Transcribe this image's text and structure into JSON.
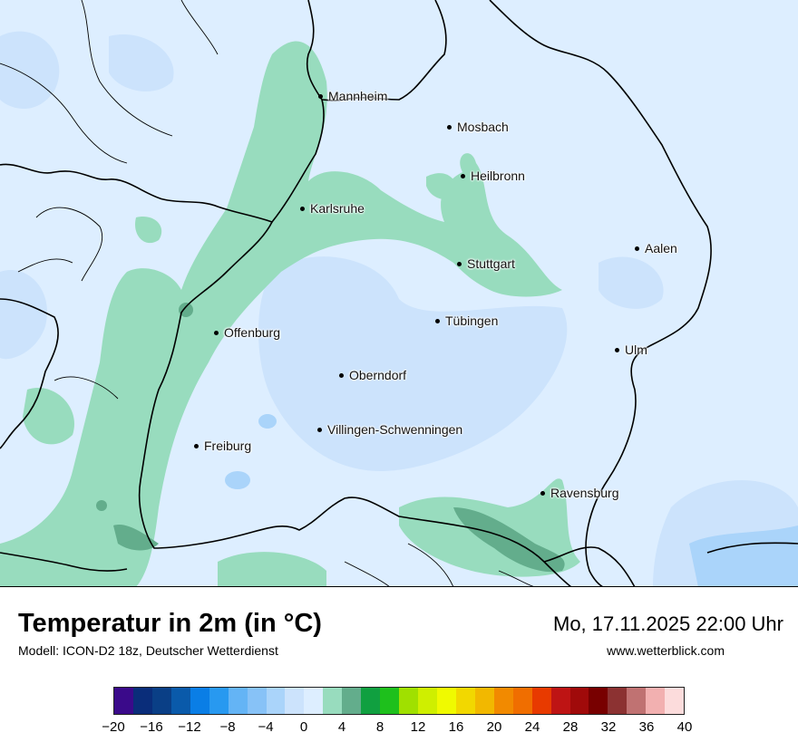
{
  "title": "Temperatur in 2m (in °C)",
  "subtitle": "Modell: ICON-D2 18z, Deutscher Wetterdienst",
  "datetime": "Mo, 17.11.2025 22:00 Uhr",
  "website": "www.wetterblick.com",
  "cities": [
    {
      "id": "mannheim",
      "name": "Mannheim"
    },
    {
      "id": "mosbach",
      "name": "Mosbach"
    },
    {
      "id": "heilbronn",
      "name": "Heilbronn"
    },
    {
      "id": "karlsruhe",
      "name": "Karlsruhe"
    },
    {
      "id": "aalen",
      "name": "Aalen"
    },
    {
      "id": "stuttgart",
      "name": "Stuttgart"
    },
    {
      "id": "tuebingen",
      "name": "Tübingen"
    },
    {
      "id": "offenburg",
      "name": "Offenburg"
    },
    {
      "id": "ulm",
      "name": "Ulm"
    },
    {
      "id": "oberndorf",
      "name": "Oberndorf"
    },
    {
      "id": "villingen",
      "name": "Villingen-Schwenningen"
    },
    {
      "id": "freiburg",
      "name": "Freiburg"
    },
    {
      "id": "ravensburg",
      "name": "Ravensburg"
    }
  ],
  "legend": {
    "colors": [
      "#3a0a8a",
      "#0a2d7a",
      "#0a3f86",
      "#0a5aaa",
      "#0a7ee6",
      "#2899f0",
      "#64b4f5",
      "#87c2f7",
      "#aad4fa",
      "#cce3fc",
      "#ddeeff",
      "#98dcbe",
      "#63ad8c",
      "#10a040",
      "#1ec01c",
      "#a0e000",
      "#cfef00",
      "#f0fa00",
      "#f2d800",
      "#f2b800",
      "#f28a00",
      "#f06e00",
      "#e83a00",
      "#be1414",
      "#a00a0a",
      "#780000",
      "#8c3232",
      "#c07272",
      "#f2b0b0",
      "#fcdcdc"
    ],
    "ticks": [
      "−20",
      "−16",
      "−12",
      "−8",
      "−4",
      "0",
      "4",
      "8",
      "12",
      "16",
      "20",
      "24",
      "28",
      "32",
      "36",
      "40"
    ]
  },
  "map_colors": {
    "cold_blue": "#cce3fc",
    "light_blue": "#ddeeff",
    "light_green": "#98dcbe",
    "dark_green": "#63ad8c",
    "border": "#000000"
  }
}
